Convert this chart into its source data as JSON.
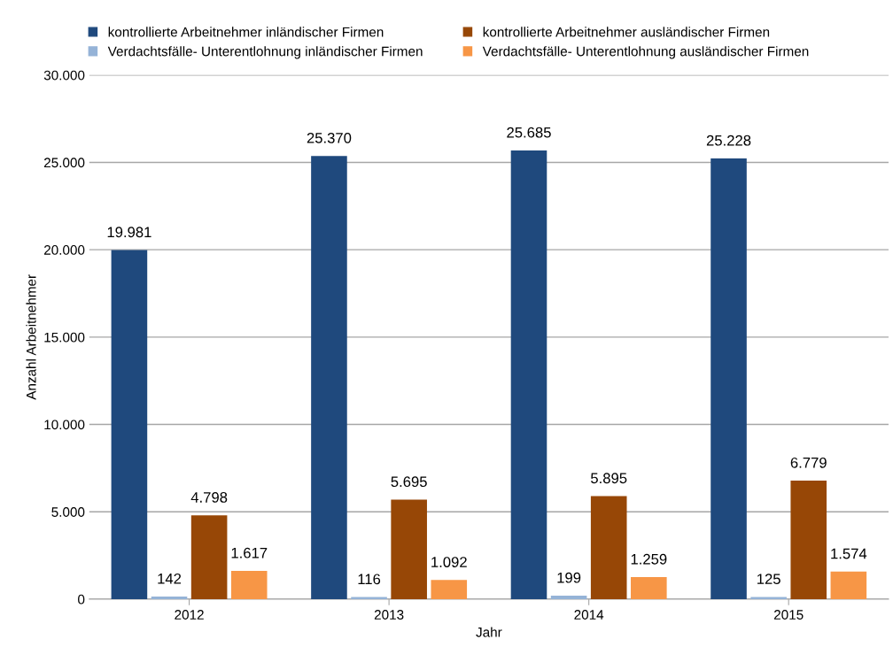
{
  "chart_data": {
    "type": "bar",
    "xlabel": "Jahr",
    "ylabel": "Anzahl Arbeitnehmer",
    "categories": [
      "2012",
      "2013",
      "2014",
      "2015"
    ],
    "series": [
      {
        "name": "kontrollierte Arbeitnehmer inländischer Firmen",
        "color": "#1f497d",
        "values": [
          19981,
          25370,
          25685,
          25228
        ],
        "value_labels": [
          "19.981",
          "25.370",
          "25.685",
          "25.228"
        ]
      },
      {
        "name": "Verdachtsfälle- Unterentlohnung inländischer Firmen",
        "color": "#95b3d7",
        "values": [
          142,
          116,
          199,
          125
        ],
        "value_labels": [
          "142",
          "116",
          "199",
          "125"
        ]
      },
      {
        "name": "kontrollierte Arbeitnehmer ausländischer Firmen",
        "color": "#974706",
        "values": [
          4798,
          5695,
          5895,
          6779
        ],
        "value_labels": [
          "4.798",
          "5.695",
          "5.895",
          "6.779"
        ]
      },
      {
        "name": "Verdachtsfälle- Unterentlohnung ausländischer Firmen",
        "color": "#f79646",
        "values": [
          1617,
          1092,
          1259,
          1574
        ],
        "value_labels": [
          "1.617",
          "1.092",
          "1.259",
          "1.574"
        ]
      }
    ],
    "ylim": [
      0,
      30000
    ],
    "yticks": [
      {
        "value": 0,
        "label": "0"
      },
      {
        "value": 5000,
        "label": "5.000"
      },
      {
        "value": 10000,
        "label": "10.000"
      },
      {
        "value": 15000,
        "label": "15.000"
      },
      {
        "value": 20000,
        "label": "20.000"
      },
      {
        "value": 25000,
        "label": "25.000"
      },
      {
        "value": 30000,
        "label": "30.000"
      }
    ],
    "grid": "y",
    "legend": "top"
  }
}
